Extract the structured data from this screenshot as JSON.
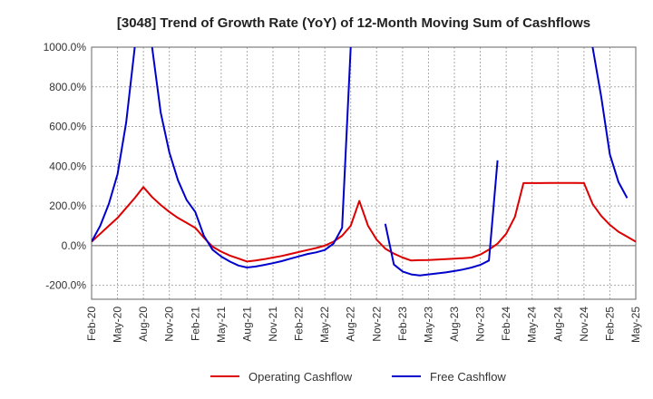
{
  "chart_data": {
    "type": "line",
    "title": "[3048]  Trend of Growth Rate (YoY) of 12-Month Moving Sum of Cashflows",
    "xlabel": "",
    "ylabel": "",
    "ylim": [
      -270,
      1000
    ],
    "yticks": [
      -200,
      0,
      200,
      400,
      600,
      800,
      1000
    ],
    "ytick_labels": [
      "-200.0%",
      "0.0%",
      "200.0%",
      "400.0%",
      "600.0%",
      "800.0%",
      "1000.0%"
    ],
    "xtick_labels": [
      "Feb-20",
      "May-20",
      "Aug-20",
      "Nov-20",
      "Feb-21",
      "May-21",
      "Aug-21",
      "Nov-21",
      "Feb-22",
      "May-22",
      "Aug-22",
      "Nov-22",
      "Feb-23",
      "May-23",
      "Aug-23",
      "Nov-23",
      "Feb-24",
      "May-24",
      "Aug-24",
      "Nov-24",
      "Feb-25",
      "May-25"
    ],
    "grid": true,
    "legend_position": "bottom-center",
    "series": [
      {
        "name": "Operating Cashflow",
        "color": "#dd0000",
        "values": [
          20,
          60,
          100,
          140,
          190,
          240,
          295,
          245,
          205,
          170,
          140,
          115,
          90,
          40,
          -5,
          -30,
          -50,
          -65,
          -80,
          -75,
          -68,
          -60,
          -52,
          -42,
          -32,
          -22,
          -12,
          0,
          20,
          50,
          100,
          225,
          100,
          30,
          -15,
          -40,
          -60,
          -75,
          -73,
          -72,
          -70,
          -68,
          -66,
          -63,
          -60,
          -45,
          -20,
          10,
          60,
          145,
          315,
          315,
          315,
          316,
          316,
          316,
          316,
          315,
          210,
          150,
          105,
          70,
          45,
          20
        ]
      },
      {
        "name": "Free Cashflow",
        "color": "#0000cc",
        "values": [
          20,
          100,
          210,
          360,
          620,
          1000,
          null,
          1000,
          670,
          470,
          330,
          230,
          170,
          50,
          -20,
          -55,
          -80,
          -100,
          -110,
          -105,
          -97,
          -88,
          -78,
          -66,
          -54,
          -42,
          -34,
          -22,
          10,
          90,
          1000,
          null,
          null,
          null,
          110,
          -95,
          -130,
          -145,
          -150,
          -145,
          -140,
          -135,
          -128,
          -120,
          -110,
          -97,
          -75,
          430,
          null,
          null,
          null,
          null,
          null,
          null,
          null,
          null,
          null,
          null,
          1000,
          750,
          460,
          320,
          240,
          null
        ]
      }
    ]
  }
}
